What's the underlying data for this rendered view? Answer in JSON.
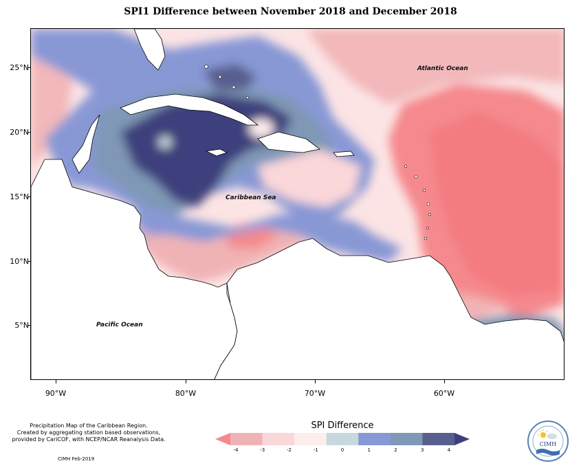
{
  "title": "SPI1 Difference between November 2018 and December 2018",
  "axes": {
    "lat_labels": [
      "25°N",
      "20°N",
      "15°N",
      "10°N",
      "5°N"
    ],
    "lon_labels": [
      "90°W",
      "80°W",
      "70°W",
      "60°W"
    ]
  },
  "map_labels": {
    "atlantic": "Atlantic Ocean",
    "caribbean": "Caribbean Sea",
    "pacific": "Pacific Ocean"
  },
  "legend": {
    "title": "SPI Difference",
    "ticks": [
      "-4",
      "-3",
      "-2",
      "-1",
      "0",
      "1",
      "2",
      "3",
      "4"
    ],
    "colors": [
      "#f5898d",
      "#f0b3b5",
      "#fad7d9",
      "#fdeeee",
      "#c7d8de",
      "#8898d5",
      "#7f98b5",
      "#585f8f",
      "#3d3f7c"
    ]
  },
  "footer": {
    "source_lines": [
      "Precipitation Map of the Caribbean Region.",
      "Created by aggregating station based observations,",
      "provided by CariCOF, with NCEP/NCAR Reanalysis Data."
    ],
    "credit": "CIMH Feb-2019"
  },
  "logo": {
    "text": "CIMH"
  }
}
